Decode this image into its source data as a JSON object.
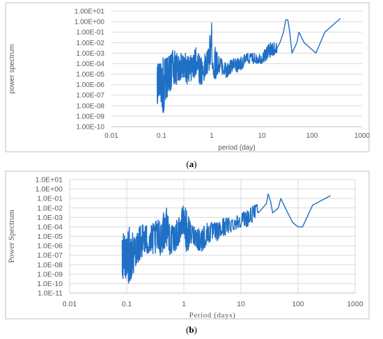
{
  "colors": {
    "line": "#1f6fc5",
    "grid": "#d9d9d9",
    "frame": "#bfbfbf",
    "text": "#595959"
  },
  "captions": {
    "a_open": "(",
    "a_letter": "a",
    "a_close": ")",
    "b_open": "(",
    "b_letter": "b",
    "b_close": ")"
  },
  "chart_data": [
    {
      "type": "line",
      "panel": "a",
      "xlabel": "period (day)",
      "ylabel": "power spectrum",
      "x_scale": "log",
      "y_scale": "log",
      "xlim": [
        0.01,
        1000
      ],
      "ylim": [
        1e-10,
        10
      ],
      "x_ticks": [
        "0.01",
        "0.1",
        "1",
        "10",
        "100",
        "1000"
      ],
      "y_ticks": [
        "1.00E-10",
        "1.00E-09",
        "1.00E-08",
        "1.00E-07",
        "1.00E-06",
        "1.00E-05",
        "1.00E-04",
        "1.00E-03",
        "1.00E-02",
        "1.00E-01",
        "1.00E+00",
        "1.00E+01"
      ],
      "grid": "horizontal",
      "legend": "none",
      "series": [
        {
          "envelope": [
            [
              0.082,
              0.0001,
              1e-08
            ],
            [
              0.09,
              0.0001,
              1e-07
            ],
            [
              0.1,
              0.0001,
              1e-08
            ],
            [
              0.11,
              0.001,
              1e-09
            ],
            [
              0.12,
              0.0003,
              3e-08
            ],
            [
              0.14,
              0.0005,
              1e-07
            ],
            [
              0.17,
              0.003,
              1e-06
            ],
            [
              0.2,
              0.001,
              1e-06
            ],
            [
              0.25,
              0.001,
              3e-06
            ],
            [
              0.3,
              0.001,
              1e-06
            ],
            [
              0.35,
              0.0005,
              1e-06
            ],
            [
              0.45,
              0.001,
              3e-06
            ],
            [
              0.5,
              0.05,
              1e-05
            ],
            [
              0.55,
              0.002,
              1e-06
            ],
            [
              0.65,
              0.0003,
              1e-06
            ],
            [
              0.75,
              0.001,
              3e-06
            ],
            [
              0.85,
              0.003,
              1e-05
            ],
            [
              1.0,
              1.0,
              0.0001
            ],
            [
              1.1,
              0.01,
              1e-06
            ],
            [
              1.3,
              0.001,
              1e-05
            ],
            [
              1.6,
              0.0003,
              1e-05
            ],
            [
              2.0,
              0.0001,
              3e-06
            ],
            [
              2.5,
              0.0003,
              1e-05
            ],
            [
              3.0,
              0.0003,
              1e-05
            ],
            [
              4.0,
              0.0005,
              3e-05
            ],
            [
              5.0,
              0.001,
              0.0001
            ],
            [
              7.0,
              0.001,
              0.0001
            ],
            [
              10,
              0.001,
              0.0001
            ],
            [
              14,
              0.01,
              0.0003
            ],
            [
              20,
              0.01,
              0.001
            ]
          ],
          "tail": [
            [
              20,
              0.003
            ],
            [
              23,
              0.01
            ],
            [
              27,
              0.1
            ],
            [
              30,
              1.5
            ],
            [
              33,
              1.5
            ],
            [
              36,
              0.1
            ],
            [
              40,
              0.001
            ],
            [
              50,
              0.01
            ],
            [
              55,
              0.1
            ],
            [
              70,
              0.01
            ],
            [
              120,
              0.001
            ],
            [
              180,
              0.1
            ],
            [
              370,
              2.0
            ]
          ]
        }
      ]
    },
    {
      "type": "line",
      "panel": "b",
      "xlabel": "Period (days)",
      "ylabel": "Power Spectrum",
      "x_scale": "log",
      "y_scale": "log",
      "xlim": [
        0.01,
        1000
      ],
      "ylim": [
        1e-11,
        10
      ],
      "x_ticks": [
        "0.01",
        "0.1",
        "1",
        "10",
        "100",
        "1000"
      ],
      "y_ticks": [
        "1.0E-11",
        "1.0E-10",
        "1.0E-09",
        "1.0E-08",
        "1.0E-07",
        "1.0E-06",
        "1.0E-05",
        "1.0E-04",
        "1.0E-03",
        "1.0E-02",
        "1.0E-01",
        "1.0E+00",
        "1.0E+01"
      ],
      "grid": "both",
      "legend": "none",
      "series": [
        {
          "envelope": [
            [
              0.083,
              1e-05,
              1e-10
            ],
            [
              0.09,
              3e-05,
              1e-09
            ],
            [
              0.1,
              1e-05,
              1e-10
            ],
            [
              0.11,
              0.0001,
              1e-10
            ],
            [
              0.13,
              3e-05,
              1e-09
            ],
            [
              0.15,
              0.0001,
              1e-08
            ],
            [
              0.2,
              0.0003,
              1e-07
            ],
            [
              0.25,
              0.0001,
              1e-07
            ],
            [
              0.3,
              0.0003,
              1e-07
            ],
            [
              0.4,
              0.001,
              1e-07
            ],
            [
              0.5,
              0.02,
              1e-06
            ],
            [
              0.55,
              0.001,
              1e-07
            ],
            [
              0.65,
              0.0001,
              1e-07
            ],
            [
              0.8,
              0.001,
              1e-06
            ],
            [
              1.0,
              0.03,
              1e-05
            ],
            [
              1.1,
              0.01,
              1e-07
            ],
            [
              1.3,
              0.0003,
              1e-06
            ],
            [
              1.6,
              0.0001,
              1e-06
            ],
            [
              2.0,
              0.0001,
              1e-07
            ],
            [
              2.5,
              0.0003,
              1e-06
            ],
            [
              3.0,
              0.0003,
              3e-06
            ],
            [
              4.0,
              0.0003,
              3e-06
            ],
            [
              5.0,
              0.001,
              1e-05
            ],
            [
              7.0,
              0.001,
              3e-05
            ],
            [
              10,
              0.003,
              0.0001
            ],
            [
              14,
              0.01,
              0.0001
            ],
            [
              20,
              0.03,
              0.003
            ]
          ],
          "tail": [
            [
              20,
              0.003
            ],
            [
              24,
              0.01
            ],
            [
              28,
              0.03
            ],
            [
              30,
              0.3
            ],
            [
              33,
              0.05
            ],
            [
              36,
              0.003
            ],
            [
              45,
              0.01
            ],
            [
              50,
              0.1
            ],
            [
              60,
              0.01
            ],
            [
              80,
              0.0003
            ],
            [
              100,
              0.0001
            ],
            [
              120,
              0.0001
            ],
            [
              180,
              0.02
            ],
            [
              370,
              0.2
            ]
          ]
        }
      ]
    }
  ]
}
